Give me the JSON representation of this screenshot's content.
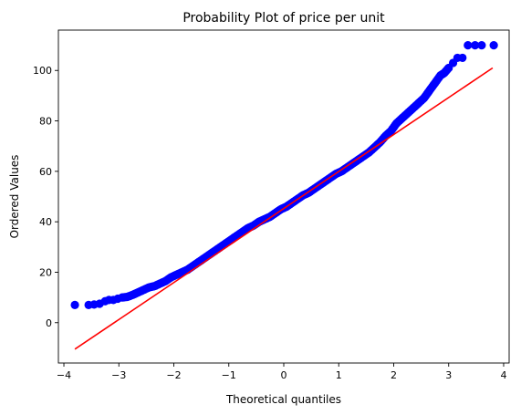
{
  "chart_data": {
    "type": "scatter",
    "title": "Probability Plot of price per unit",
    "xlabel": "Theoretical quantiles",
    "ylabel": "Ordered Values",
    "xlim": [
      -4.1,
      4.1
    ],
    "ylim": [
      -16,
      116
    ],
    "xticks": [
      -4,
      -3,
      -2,
      -1,
      0,
      1,
      2,
      3,
      4
    ],
    "xtick_labels": [
      "−4",
      "−3",
      "−2",
      "−1",
      "0",
      "1",
      "2",
      "3",
      "4"
    ],
    "yticks": [
      0,
      20,
      40,
      60,
      80,
      100
    ],
    "ytick_labels": [
      "0",
      "20",
      "40",
      "60",
      "80",
      "100"
    ],
    "grid": false,
    "legend": false,
    "colors": {
      "points": "#0000ff",
      "fit_line": "#ff0000",
      "axes": "#000000"
    },
    "fit_line": {
      "x": [
        -3.8,
        3.8
      ],
      "y": [
        -10.5,
        101.0
      ]
    },
    "series": [
      {
        "x": [
          -3.8,
          -3.55,
          -3.45,
          -3.35,
          -3.25,
          -3.18,
          -3.1,
          -3.02,
          -2.94,
          -2.85,
          -2.75,
          -2.65,
          -2.55,
          -2.45,
          -2.35,
          -2.25,
          -2.15,
          -2.05,
          -1.95,
          -1.85,
          -1.75,
          -1.65,
          -1.55,
          -1.45,
          -1.35,
          -1.25,
          -1.15,
          -1.05,
          -0.95,
          -0.85,
          -0.75,
          -0.65,
          -0.55,
          -0.45,
          -0.35,
          -0.25,
          -0.15,
          -0.05,
          0.05,
          0.15,
          0.25,
          0.35,
          0.45,
          0.55,
          0.65,
          0.75,
          0.85,
          0.95,
          1.05,
          1.15,
          1.25,
          1.35,
          1.45,
          1.55,
          1.65,
          1.75,
          1.85,
          1.95,
          2.05,
          2.15,
          2.25,
          2.35,
          2.45,
          2.55,
          2.65,
          2.75,
          2.85,
          2.92,
          3.0,
          3.08,
          3.16,
          3.25,
          3.35,
          3.48,
          3.6,
          3.82
        ],
        "y": [
          7.0,
          7.0,
          7.2,
          7.5,
          8.5,
          9.0,
          9.0,
          9.5,
          10.0,
          10.2,
          11.0,
          12.0,
          13.0,
          14.0,
          14.5,
          15.5,
          16.5,
          18.0,
          19.0,
          20.0,
          21.0,
          22.5,
          24.0,
          25.5,
          27.0,
          28.5,
          30.0,
          31.5,
          33.0,
          34.5,
          36.0,
          37.5,
          38.5,
          40.0,
          41.0,
          42.0,
          43.5,
          45.0,
          46.0,
          47.5,
          49.0,
          50.5,
          51.5,
          53.0,
          54.5,
          56.0,
          57.5,
          59.0,
          60.0,
          61.5,
          63.0,
          64.5,
          66.0,
          67.5,
          69.5,
          71.5,
          74.0,
          76.0,
          79.0,
          81.0,
          83.0,
          85.0,
          87.0,
          89.0,
          92.0,
          95.0,
          98.0,
          99.0,
          101.0,
          103.0,
          105.0,
          105.0,
          110.0,
          110.0,
          110.0,
          110.0
        ]
      }
    ]
  }
}
